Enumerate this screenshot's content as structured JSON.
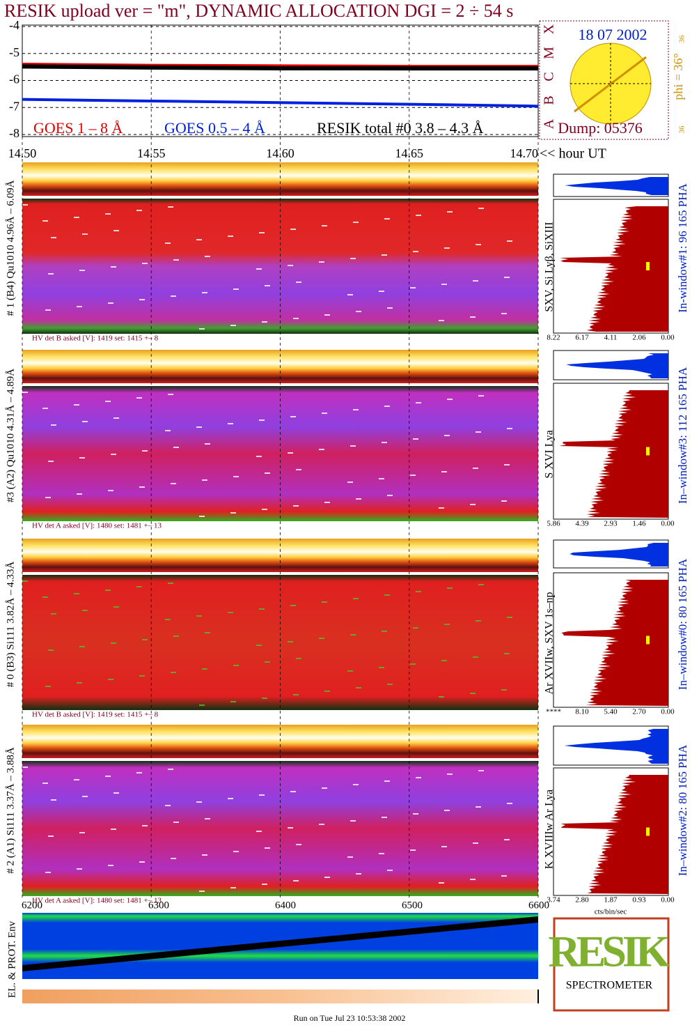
{
  "title": "RESIK upload ver = \"m\", DYNAMIC ALLOCATION  DGI =   2 ÷  54 s",
  "chart_data": {
    "type": "line",
    "x": [
      14.5,
      14.55,
      14.6,
      14.65,
      14.7
    ],
    "xlim": [
      14.5,
      14.7
    ],
    "xticks": [
      {
        "value": 14.5,
        "label": "14.50"
      },
      {
        "value": 14.55,
        "label": "14.55"
      },
      {
        "value": 14.6,
        "label": "14.60"
      },
      {
        "value": 14.65,
        "label": "14.65"
      },
      {
        "value": 14.7,
        "label": "14.70"
      }
    ],
    "xlabel": "<< hour UT",
    "ylim": [
      -8,
      -4
    ],
    "yticks": [
      -4,
      -5,
      -6,
      -7,
      -8
    ],
    "grid": true,
    "series": [
      {
        "name": "GOES 1 – 8 Å",
        "color": "#e00000",
        "values": [
          -5.42,
          -5.46,
          -5.48,
          -5.5,
          -5.5
        ]
      },
      {
        "name": "GOES 0.5 – 4 Å",
        "color": "#0020e0",
        "values": [
          -6.7,
          -6.76,
          -6.82,
          -6.88,
          -6.95
        ]
      },
      {
        "name": "RESIK total #0  3.8 – 4.3 Å",
        "color": "#000000",
        "values": [
          -5.48,
          -5.52,
          -5.55,
          -5.55,
          -5.55
        ]
      }
    ]
  },
  "sun": {
    "date": "18 07 2002",
    "dump": "Dump: 05376",
    "phi": "phi = 36°",
    "top_num": "36",
    "bottom_num": "36",
    "letters": [
      "X",
      "M",
      "C",
      "B",
      "A"
    ]
  },
  "panels": [
    {
      "ylabel": "# 1 (B4) Qu1010 4.96Å – 6.09Å",
      "lines": "SXV, Si Lyβ, SiXIII",
      "window": "In-window#1:   96 165 PHA",
      "hv": "HV det B asked [V]:  1419 set:  1415  +–    8",
      "ticks": [
        "8.22",
        "6.17",
        "4.11",
        "2.06",
        "0.00"
      ]
    },
    {
      "ylabel": "#3 (A2) Qu1010  4.31Å – 4.89Å",
      "lines": "S XVI Lya",
      "window": "In–window#3:  112 165 PHA",
      "hv": "HV det A asked [V]:  1480 set:  1481  +–    13",
      "ticks": [
        "5.86",
        "4.39",
        "2.93",
        "1.46",
        "0.00"
      ]
    },
    {
      "ylabel": "# 0 (B3) Si111  3.82Å – 4.33Å",
      "lines": "Ar XVIIw, SXV 1s–np",
      "window": "In–window#0:   80 165 PHA",
      "hv": "HV det B asked [V]:  1419 set:  1415  +–    8",
      "ticks": [
        "****",
        "8.10",
        "5.40",
        "2.70",
        "0.00"
      ]
    },
    {
      "ylabel": "# 2 (A1) Si111  3.37Å –  3.88Å",
      "lines": "K XVIIIw  Ar Lya",
      "window": "In–window#2:   80 165 PHA",
      "hv": "HV det A asked [V]:  1480 set:  1481  +–    13",
      "ticks": [
        "3.74",
        "2.80",
        "1.87",
        "0.93",
        "0.00"
      ]
    }
  ],
  "bottom": {
    "ticks": [
      "6200",
      "6300",
      "6400",
      "6500",
      "6600"
    ],
    "ylabel": "EL. & PROT. Env",
    "unit": "cts/bin/sec"
  },
  "logo": {
    "letters": "RESIK",
    "brand": "SPECTROMETER"
  },
  "footer": "Run on Tue Jul 23 10:53:38 2002"
}
